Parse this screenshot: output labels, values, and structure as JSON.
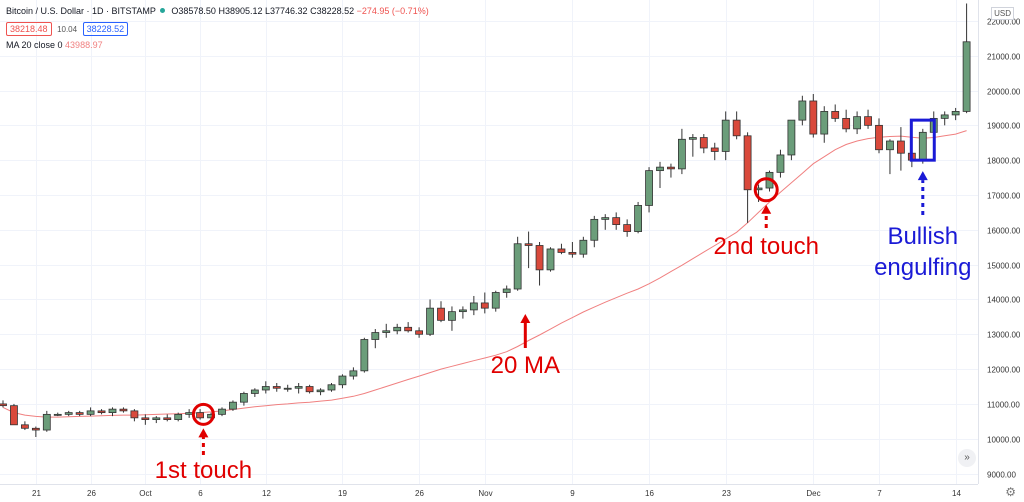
{
  "header": {
    "symbol": "Bitcoin / U.S. Dollar · 1D · BITSTAMP",
    "ohlc": {
      "o": "O38578.50",
      "h": "H38905.12",
      "l": "L37746.32",
      "c": "C38228.52",
      "chg": "−274.95 (−0.71%)"
    },
    "bid": "38218.48",
    "spread": "10.04",
    "ask": "38228.52",
    "ma_label": "MA 20 close 0",
    "ma_value": "43988.97"
  },
  "currency": "USD",
  "annotations": {
    "first_touch": "1st touch",
    "second_touch": "2nd touch",
    "ma": "20 MA",
    "bullish_1": "Bullish",
    "bullish_2": "engulfing"
  },
  "colors": {
    "up": "#6b9d7a",
    "down": "#d9493b",
    "ma": "#f08080",
    "annotation_red": "#e00000",
    "annotation_blue": "#1a1ad6"
  },
  "chart_data": {
    "type": "candlestick",
    "ylim": [
      8700,
      22600
    ],
    "yticks": [
      9000,
      10000,
      11000,
      12000,
      13000,
      14000,
      15000,
      16000,
      17000,
      18000,
      19000,
      20000,
      21000,
      22000
    ],
    "ytick_labels": [
      "9000.00",
      "10000.00",
      "11000.00",
      "12000.00",
      "13000.00",
      "14000.00",
      "15000.00",
      "16000.00",
      "17000.00",
      "18000.00",
      "19000.00",
      "20000.00",
      "21000.00",
      "22000.00"
    ],
    "xticks": [
      {
        "label": "21",
        "index": 3
      },
      {
        "label": "26",
        "index": 8
      },
      {
        "label": "Oct",
        "index": 13
      },
      {
        "label": "6",
        "index": 18
      },
      {
        "label": "12",
        "index": 24
      },
      {
        "label": "19",
        "index": 31
      },
      {
        "label": "26",
        "index": 38
      },
      {
        "label": "Nov",
        "index": 44
      },
      {
        "label": "9",
        "index": 52
      },
      {
        "label": "16",
        "index": 59
      },
      {
        "label": "23",
        "index": 66
      },
      {
        "label": "Dec",
        "index": 74
      },
      {
        "label": "7",
        "index": 80
      },
      {
        "label": "14",
        "index": 87
      }
    ],
    "candles": [
      [
        11000,
        11100,
        10900,
        10950
      ],
      [
        10950,
        11000,
        10400,
        10400
      ],
      [
        10400,
        10500,
        10250,
        10300
      ],
      [
        10300,
        10350,
        10050,
        10250
      ],
      [
        10250,
        10800,
        10200,
        10700
      ],
      [
        10700,
        10750,
        10650,
        10700
      ],
      [
        10700,
        10800,
        10650,
        10750
      ],
      [
        10750,
        10800,
        10650,
        10700
      ],
      [
        10700,
        10900,
        10650,
        10800
      ],
      [
        10800,
        10850,
        10700,
        10750
      ],
      [
        10750,
        10900,
        10650,
        10850
      ],
      [
        10850,
        10900,
        10750,
        10800
      ],
      [
        10800,
        10850,
        10500,
        10600
      ],
      [
        10600,
        10700,
        10400,
        10550
      ],
      [
        10550,
        10650,
        10450,
        10600
      ],
      [
        10600,
        10700,
        10500,
        10550
      ],
      [
        10550,
        10750,
        10500,
        10700
      ],
      [
        10700,
        10850,
        10600,
        10750
      ],
      [
        10750,
        10850,
        10550,
        10600
      ],
      [
        10600,
        10750,
        10550,
        10700
      ],
      [
        10700,
        10900,
        10650,
        10850
      ],
      [
        10850,
        11100,
        10800,
        11050
      ],
      [
        11050,
        11350,
        10950,
        11300
      ],
      [
        11300,
        11450,
        11200,
        11400
      ],
      [
        11400,
        11650,
        11300,
        11500
      ],
      [
        11500,
        11600,
        11350,
        11450
      ],
      [
        11450,
        11550,
        11350,
        11450
      ],
      [
        11450,
        11600,
        11300,
        11500
      ],
      [
        11500,
        11550,
        11300,
        11350
      ],
      [
        11350,
        11450,
        11250,
        11400
      ],
      [
        11400,
        11600,
        11350,
        11550
      ],
      [
        11550,
        11850,
        11450,
        11800
      ],
      [
        11800,
        12050,
        11700,
        11950
      ],
      [
        11950,
        12900,
        11900,
        12850
      ],
      [
        12850,
        13150,
        12600,
        13050
      ],
      [
        13050,
        13300,
        12900,
        13100
      ],
      [
        13100,
        13300,
        13000,
        13200
      ],
      [
        13200,
        13350,
        13050,
        13100
      ],
      [
        13100,
        13200,
        12900,
        13000
      ],
      [
        13000,
        14000,
        12950,
        13750
      ],
      [
        13750,
        13950,
        13350,
        13400
      ],
      [
        13400,
        13800,
        13100,
        13650
      ],
      [
        13650,
        13800,
        13450,
        13700
      ],
      [
        13700,
        14100,
        13550,
        13900
      ],
      [
        13900,
        14200,
        13600,
        13750
      ],
      [
        13750,
        14250,
        13650,
        14200
      ],
      [
        14200,
        14400,
        14050,
        14300
      ],
      [
        14300,
        15800,
        14250,
        15600
      ],
      [
        15600,
        15950,
        14900,
        15550
      ],
      [
        15550,
        15650,
        14400,
        14850
      ],
      [
        14850,
        15500,
        14800,
        15450
      ],
      [
        15450,
        15600,
        15300,
        15350
      ],
      [
        15350,
        15650,
        15200,
        15300
      ],
      [
        15300,
        15800,
        15200,
        15700
      ],
      [
        15700,
        16400,
        15500,
        16300
      ],
      [
        16300,
        16450,
        16000,
        16350
      ],
      [
        16350,
        16500,
        16000,
        16150
      ],
      [
        16150,
        16300,
        15800,
        15950
      ],
      [
        15950,
        16800,
        15900,
        16700
      ],
      [
        16700,
        17800,
        16500,
        17700
      ],
      [
        17700,
        17950,
        17200,
        17800
      ],
      [
        17800,
        17900,
        17500,
        17750
      ],
      [
        17750,
        18900,
        17600,
        18600
      ],
      [
        18600,
        18750,
        18100,
        18650
      ],
      [
        18650,
        18750,
        18200,
        18350
      ],
      [
        18350,
        18500,
        18000,
        18250
      ],
      [
        18250,
        19400,
        18000,
        19150
      ],
      [
        19150,
        19400,
        18600,
        18700
      ],
      [
        18700,
        18800,
        16200,
        17150
      ],
      [
        17150,
        17300,
        16800,
        17200
      ],
      [
        17200,
        17700,
        17100,
        17650
      ],
      [
        17650,
        18300,
        17500,
        18150
      ],
      [
        18150,
        19150,
        18000,
        19150
      ],
      [
        19150,
        19850,
        19000,
        19700
      ],
      [
        19700,
        19900,
        18650,
        18750
      ],
      [
        18750,
        19550,
        18500,
        19400
      ],
      [
        19400,
        19600,
        19100,
        19200
      ],
      [
        19200,
        19450,
        18800,
        18900
      ],
      [
        18900,
        19400,
        18750,
        19250
      ],
      [
        19250,
        19450,
        18900,
        19000
      ],
      [
        19000,
        19200,
        18200,
        18300
      ],
      [
        18300,
        18600,
        17600,
        18550
      ],
      [
        18550,
        18950,
        17700,
        18200
      ],
      [
        18200,
        18450,
        17800,
        18000
      ],
      [
        18000,
        18900,
        17900,
        18800
      ],
      [
        18800,
        19400,
        18700,
        19200
      ],
      [
        19200,
        19400,
        19000,
        19300
      ],
      [
        19300,
        19500,
        19150,
        19400
      ],
      [
        19400,
        22500,
        19350,
        21400
      ]
    ],
    "ma20": [
      10900,
      10750,
      10680,
      10640,
      10620,
      10620,
      10630,
      10640,
      10650,
      10660,
      10670,
      10680,
      10680,
      10690,
      10700,
      10710,
      10720,
      10730,
      10750,
      10770,
      10800,
      10840,
      10880,
      10920,
      10950,
      10980,
      11000,
      11030,
      11050,
      11080,
      11110,
      11160,
      11220,
      11300,
      11400,
      11500,
      11600,
      11700,
      11800,
      11900,
      12000,
      12080,
      12160,
      12240,
      12320,
      12400,
      12500,
      12650,
      12820,
      12980,
      13150,
      13320,
      13480,
      13640,
      13780,
      13920,
      14050,
      14180,
      14300,
      14450,
      14620,
      14800,
      14980,
      15170,
      15360,
      15550,
      15740,
      15930,
      16200,
      16500,
      16800,
      17080,
      17350,
      17620,
      17900,
      18100,
      18300,
      18450,
      18550,
      18620,
      18660,
      18680,
      18690,
      18660,
      18630,
      18650,
      18700,
      18750,
      18850
    ]
  }
}
